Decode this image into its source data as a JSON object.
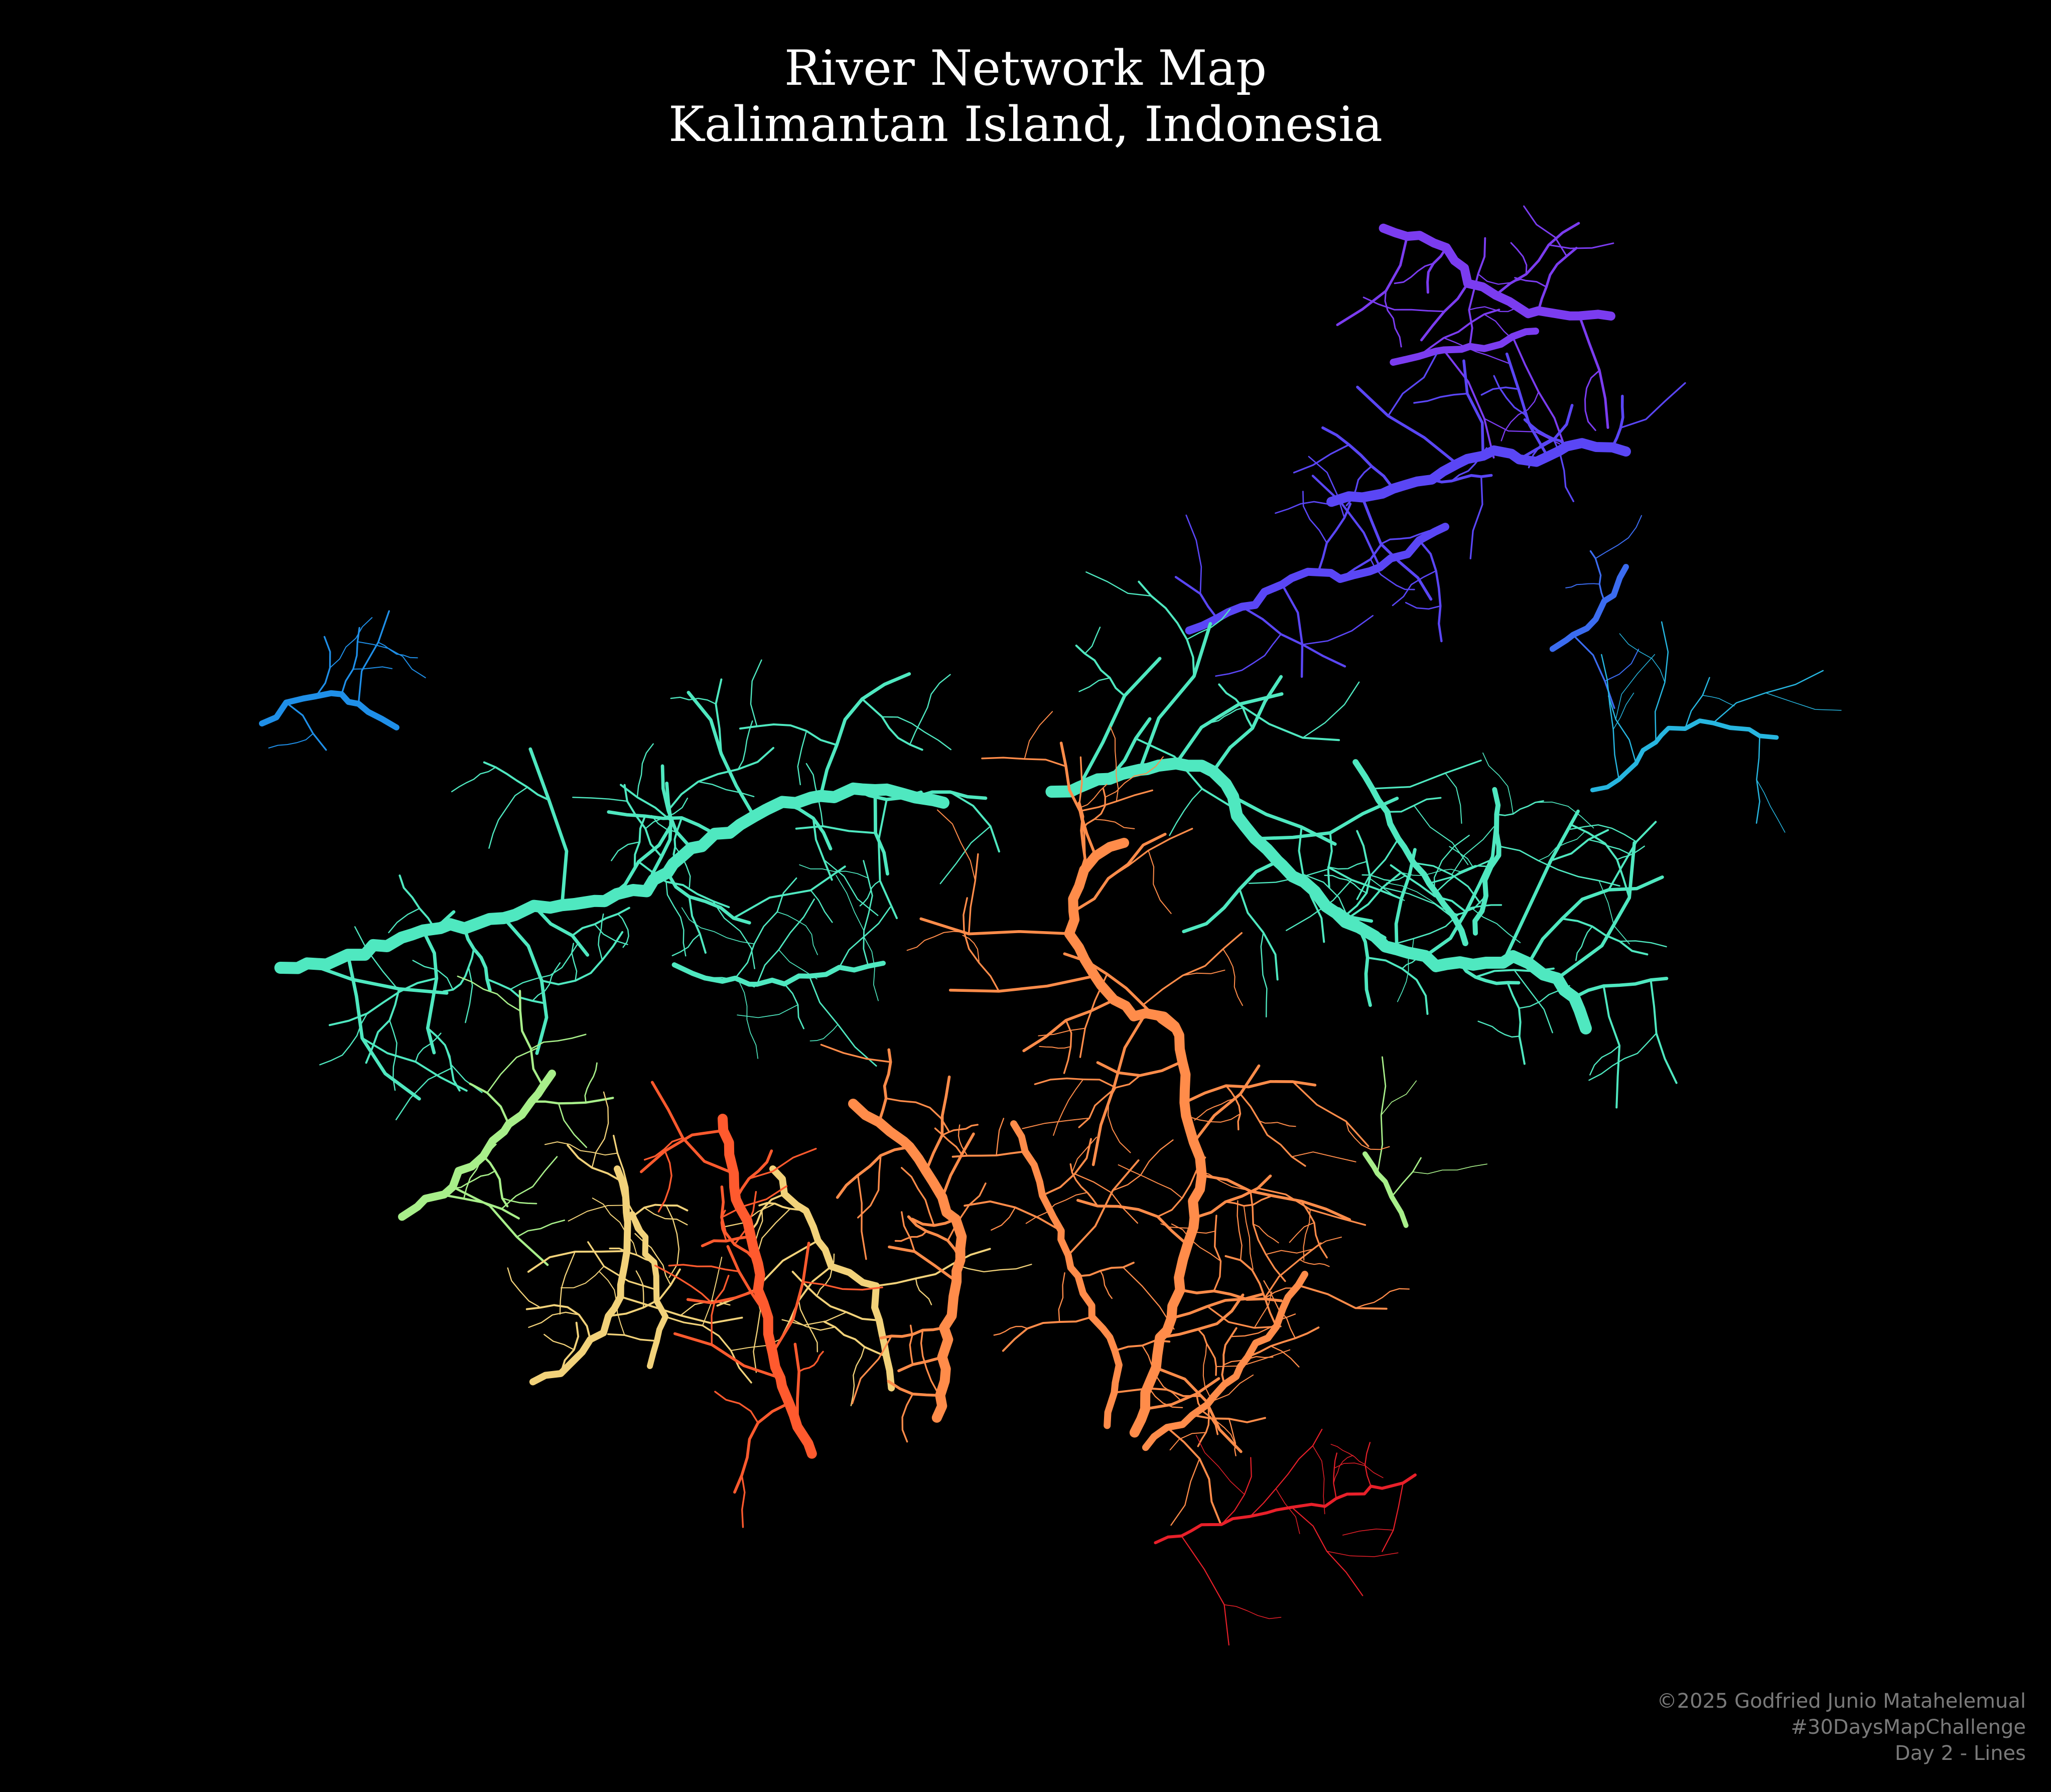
{
  "title": {
    "line1": "River Network Map",
    "line2": "Kalimantan Island, Indonesia"
  },
  "credits": {
    "author": "©2025 Godfried Junio Matahelemual",
    "hashtag": "#30DaysMapChallenge",
    "day": "Day 2 - Lines"
  },
  "colors": {
    "background": "#000000",
    "title": "#ffffff",
    "credits": "#7a7a7a",
    "palette": "rainbow (turbo-like) by drainage basin",
    "basins": {
      "north_sabah": "#7b3cf0",
      "north_east": "#5a46f5",
      "east_upper": "#3b6cf0",
      "west_corner": "#1f8fe8",
      "north_east_coast": "#27b6e0",
      "kapuas_mahakam": "#4fe8c0",
      "south_west": "#a8ef8a",
      "central_south": "#f2d27a",
      "kahayan_barito": "#ff8c4a",
      "south_east": "#ff5a2e",
      "south_tip": "#e8202a"
    }
  },
  "map": {
    "subject": "river network",
    "region": "Kalimantan Island, Indonesia"
  }
}
